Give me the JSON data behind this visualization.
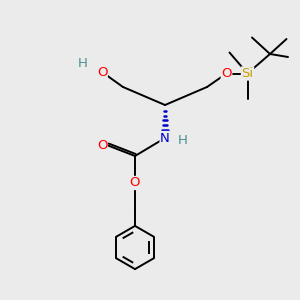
{
  "bg_color": "#ebebeb",
  "atom_colors": {
    "C": "#000000",
    "H": "#4a9090",
    "O": "#ff0000",
    "N": "#0000cc",
    "Si": "#c8a000"
  },
  "bond_color": "#000000",
  "figsize": [
    3.0,
    3.0
  ],
  "dpi": 100,
  "lw": 1.4,
  "fs": 9.5
}
